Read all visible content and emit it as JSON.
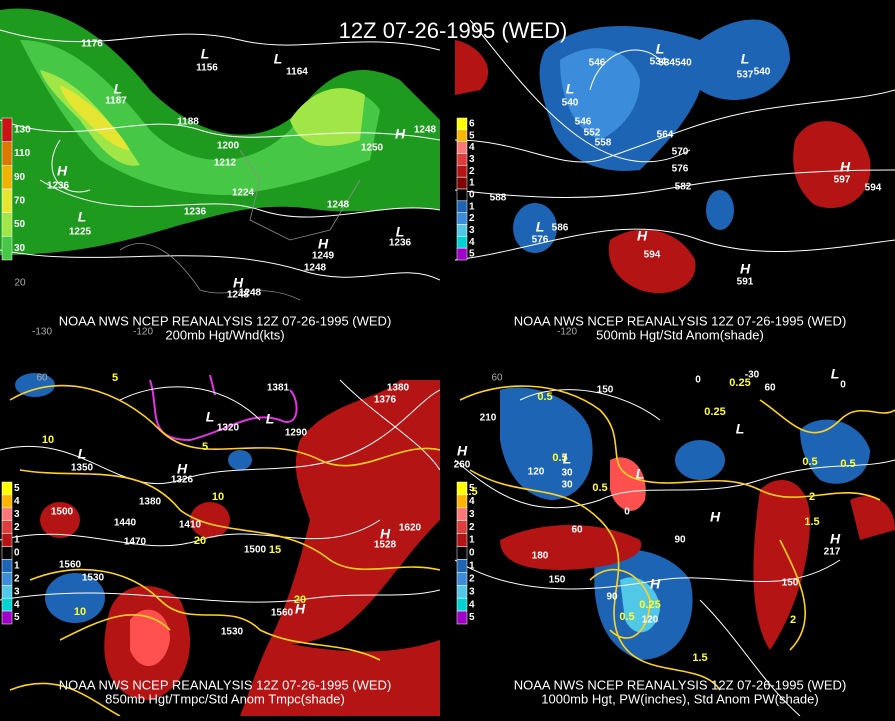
{
  "title": "12Z 07-26-1995 (WED)",
  "panels": [
    {
      "source": "NOAA NWS NCEP REANALYSIS 12Z 07-26-1995 (WED)",
      "subtitle": "200mb Hgt/Wnd(kts)",
      "colorbar": [
        "130",
        "110",
        "90",
        "70",
        "50",
        "30"
      ],
      "labels": [
        "1176",
        "1156",
        "1164",
        "1187",
        "1188",
        "1200",
        "1212",
        "1224",
        "1236",
        "1248",
        "1248",
        "1248",
        "1248",
        "1225",
        "1250",
        "1236",
        "1236",
        "1249",
        "1248"
      ],
      "centers": [
        "L",
        "L",
        "L",
        "L",
        "H",
        "H",
        "L",
        "H",
        "H"
      ],
      "axis": [
        "-130",
        "-120",
        "20"
      ]
    },
    {
      "source": "NOAA NWS NCEP REANALYSIS 12Z 07-26-1995 (WED)",
      "subtitle": "500mb Hgt/Std Anom(shade)",
      "colorbar": [
        "6",
        "5",
        "4",
        "3",
        "2",
        "1",
        "0",
        "1",
        "2",
        "3",
        "4",
        "5"
      ],
      "labels": [
        "546",
        "534540",
        "540",
        "540",
        "546",
        "552",
        "558",
        "564",
        "570",
        "576",
        "582",
        "588",
        "586",
        "594",
        "594",
        "597",
        "591",
        "576",
        "534",
        "537"
      ],
      "centers": [
        "L",
        "L",
        "L",
        "L",
        "H",
        "H",
        "H"
      ],
      "axis": [
        "-120"
      ]
    },
    {
      "source": "NOAA NWS NCEP REANALYSIS 12Z 07-26-1995 (WED)",
      "subtitle": "850mb Hgt/Tmpc/Std Anom Tmpc(shade)",
      "colorbar": [
        "5",
        "4",
        "3",
        "2",
        "1",
        "0",
        "1",
        "2",
        "3",
        "4",
        "5"
      ],
      "labels": [
        "1380",
        "1381",
        "1320",
        "1290",
        "1350",
        "1500",
        "1440",
        "1470",
        "1380",
        "1410",
        "1500",
        "1560",
        "1530",
        "1620",
        "1560",
        "1530",
        "1376",
        "1326",
        "1528"
      ],
      "ylabels": [
        "5",
        "5",
        "10",
        "10",
        "20",
        "15",
        "20",
        "10"
      ],
      "centers": [
        "L",
        "L",
        "L",
        "H",
        "H",
        "H"
      ],
      "axis": [
        "60"
      ]
    },
    {
      "source": "NOAA NWS NCEP REANALYSIS 12Z 07-26-1995 (WED)",
      "subtitle": "1000mb Hgt, PW(inches), Std Anom PW(shade)",
      "colorbar": [
        "5",
        "4",
        "3",
        "2",
        "1",
        "0",
        "1",
        "2",
        "3",
        "4",
        "5"
      ],
      "labels": [
        "150",
        "210",
        "120",
        "30",
        "60",
        "180",
        "150",
        "90",
        "120",
        "90",
        "150",
        "0",
        "-30",
        "0",
        "60",
        "30",
        "0",
        "260",
        "217"
      ],
      "ylabels": [
        "0.5",
        "0.5",
        "0.25",
        "0.25",
        "0.5",
        "1.5",
        "2",
        "1.5",
        "0.25",
        "0.5",
        "2",
        "0.5",
        "1.5",
        "0.5"
      ],
      "centers": [
        "L",
        "L",
        "L",
        "L",
        "H",
        "H",
        "H",
        "H"
      ],
      "axis": [
        "60"
      ]
    }
  ]
}
